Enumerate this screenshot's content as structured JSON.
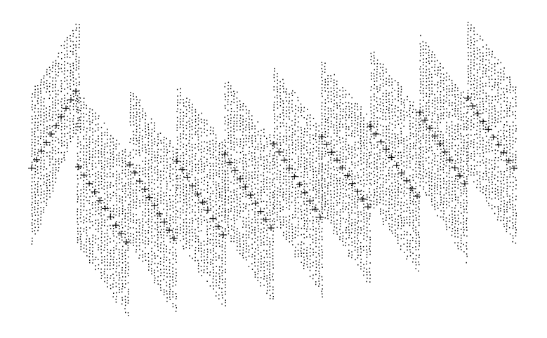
{
  "figure": {
    "description_visible_text": "",
    "background_color": "#ffffff",
    "ink_color": "#000000",
    "motif_count": 10
  }
}
